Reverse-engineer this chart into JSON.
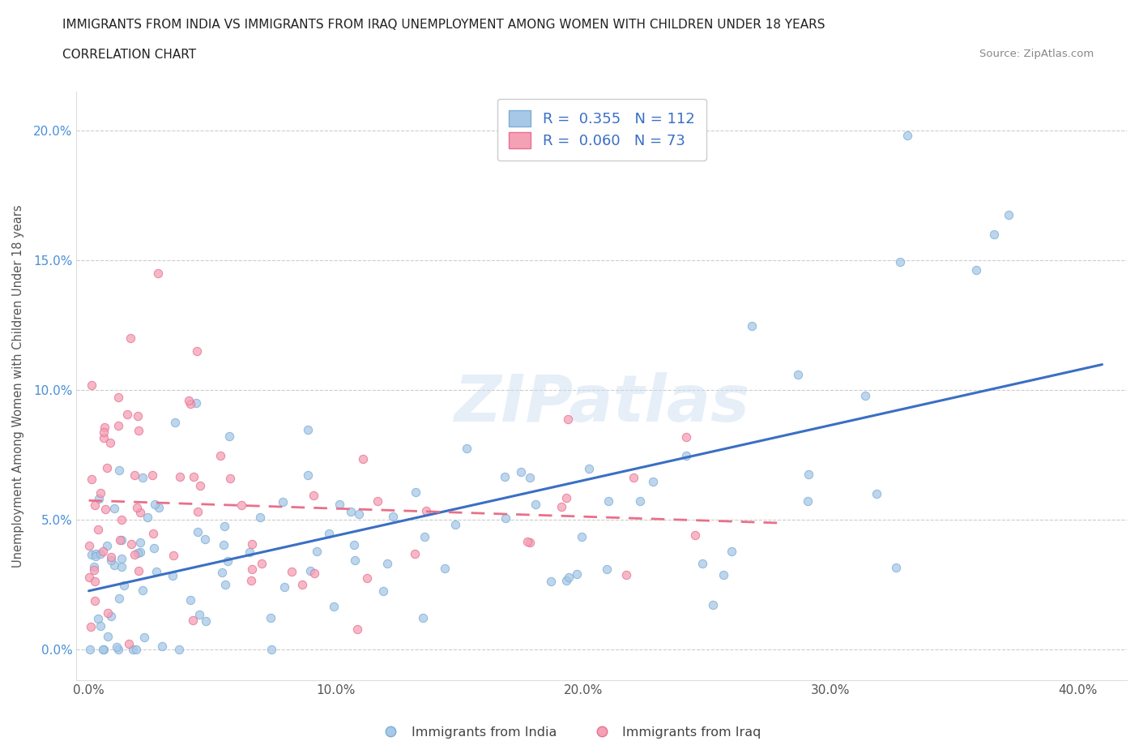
{
  "title_line1": "IMMIGRANTS FROM INDIA VS IMMIGRANTS FROM IRAQ UNEMPLOYMENT AMONG WOMEN WITH CHILDREN UNDER 18 YEARS",
  "title_line2": "CORRELATION CHART",
  "source_text": "Source: ZipAtlas.com",
  "ylabel": "Unemployment Among Women with Children Under 18 years",
  "india_R": 0.355,
  "india_N": 112,
  "iraq_R": 0.06,
  "iraq_N": 73,
  "india_color": "#a8c8e8",
  "india_edge_color": "#7aafd4",
  "iraq_color": "#f4a0b5",
  "iraq_edge_color": "#e87090",
  "india_line_color": "#3a6fc4",
  "iraq_line_color": "#e8708a",
  "legend_text_color": "#3a6fc4",
  "watermark": "ZIPatlas",
  "background_color": "#ffffff",
  "grid_color": "#cccccc",
  "india_label": "Immigrants from India",
  "iraq_label": "Immigrants from Iraq",
  "xtick_vals": [
    0.0,
    0.1,
    0.2,
    0.3,
    0.4
  ],
  "ytick_vals": [
    0.0,
    0.05,
    0.1,
    0.15,
    0.2
  ],
  "xlim": [
    -0.005,
    0.42
  ],
  "ylim": [
    -0.012,
    0.215
  ]
}
